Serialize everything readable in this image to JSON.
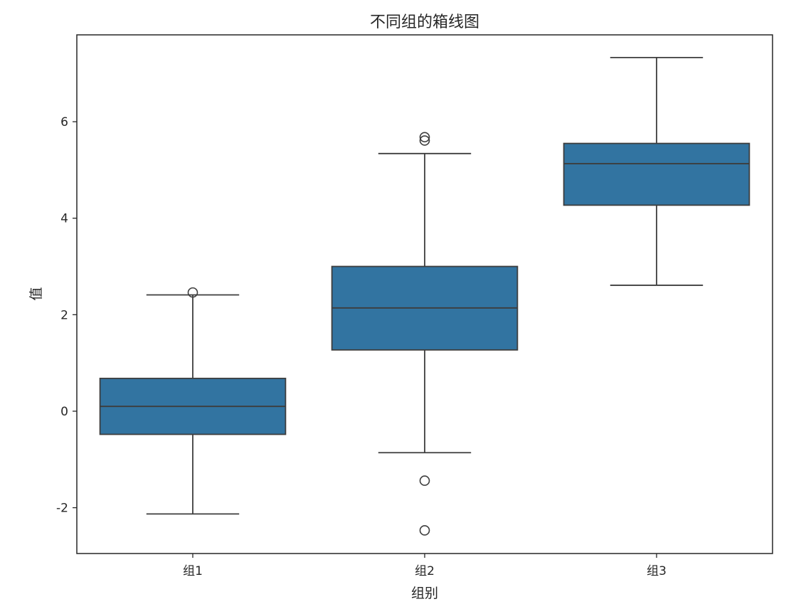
{
  "chart_data": {
    "type": "box",
    "title": "不同组的箱线图",
    "xlabel": "组别",
    "ylabel": "值",
    "categories": [
      "组1",
      "组2",
      "组3"
    ],
    "ylim": [
      -2.95,
      7.8
    ],
    "yticks": [
      -2,
      0,
      2,
      4,
      6
    ],
    "grid": false,
    "colors": {
      "box": "#3274a1",
      "line": "#3d3d3d",
      "axis": "#262626"
    },
    "boxes": [
      {
        "name": "组1",
        "whisker_low": -2.13,
        "q1": -0.48,
        "median": 0.1,
        "q3": 0.68,
        "whisker_high": 2.41,
        "outliers": [
          2.46
        ]
      },
      {
        "name": "组2",
        "whisker_low": -0.86,
        "q1": 1.27,
        "median": 2.14,
        "q3": 3.0,
        "whisker_high": 5.34,
        "outliers": [
          5.61,
          5.68,
          -1.44,
          -2.47
        ]
      },
      {
        "name": "组3",
        "whisker_low": 2.61,
        "q1": 4.27,
        "median": 5.13,
        "q3": 5.55,
        "whisker_high": 7.33,
        "outliers": []
      }
    ]
  }
}
